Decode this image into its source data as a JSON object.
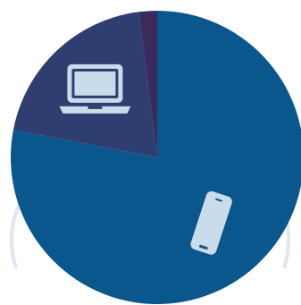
{
  "chart_data": {
    "type": "pie",
    "title": "",
    "slices": [
      {
        "value": 0.78,
        "color": "#0a578d",
        "icon": "smartphone-icon"
      },
      {
        "value": 0.2,
        "color": "#2f3e70",
        "icon": "laptop-icon"
      },
      {
        "value": 0.02,
        "color": "#3b2a5c",
        "icon": ""
      }
    ],
    "legend": "none",
    "watermark_color": "#dfe7f1"
  }
}
